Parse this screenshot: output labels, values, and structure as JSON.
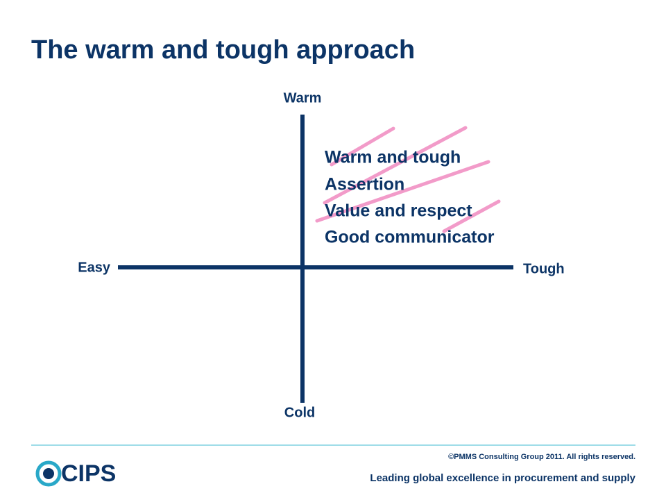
{
  "header": {
    "title": "The warm and tough approach"
  },
  "axes": {
    "top": "Warm",
    "bottom": "Cold",
    "left": "Easy",
    "right": "Tough"
  },
  "quadrant": {
    "lines": [
      "Warm and tough",
      "Assertion",
      "Value and respect",
      "Good communicator"
    ]
  },
  "footer": {
    "copyright": "©PMMS Consulting Group 2011.  All rights reserved.",
    "tagline": "Leading global excellence in procurement and supply",
    "logo": "CIPS"
  }
}
